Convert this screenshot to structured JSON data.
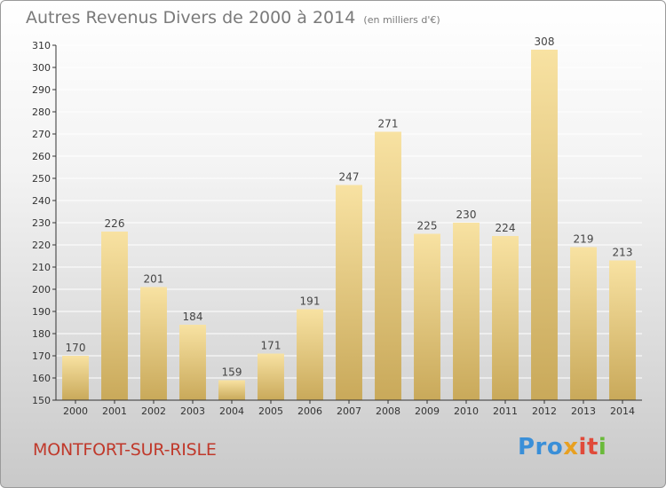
{
  "title": {
    "main": "Autres Revenus Divers de 2000 à 2014",
    "sub": "(en milliers d'€)"
  },
  "place": "MONTFORT-SUR-RISLE",
  "logo": {
    "text": "Proxiti",
    "parts": [
      "Pro",
      "x",
      "it",
      "i"
    ]
  },
  "colors": {
    "bar_light": "#f8e2a2",
    "bar_dark": "#c9a95a",
    "place_text": "#c0392b",
    "axis": "#333333"
  },
  "chart_data": {
    "type": "bar",
    "title": "Autres Revenus Divers de 2000 à 2014",
    "subtitle": "(en milliers d'€)",
    "categories": [
      "2000",
      "2001",
      "2002",
      "2003",
      "2004",
      "2005",
      "2006",
      "2007",
      "2008",
      "2009",
      "2010",
      "2011",
      "2012",
      "2013",
      "2014"
    ],
    "values": [
      170,
      226,
      201,
      184,
      159,
      171,
      191,
      247,
      271,
      225,
      230,
      224,
      308,
      219,
      213
    ],
    "ylim": [
      150,
      310
    ],
    "yticks": [
      150,
      160,
      170,
      180,
      190,
      200,
      210,
      220,
      230,
      240,
      250,
      260,
      270,
      280,
      290,
      300,
      310
    ],
    "grid": true,
    "data_labels": true
  }
}
